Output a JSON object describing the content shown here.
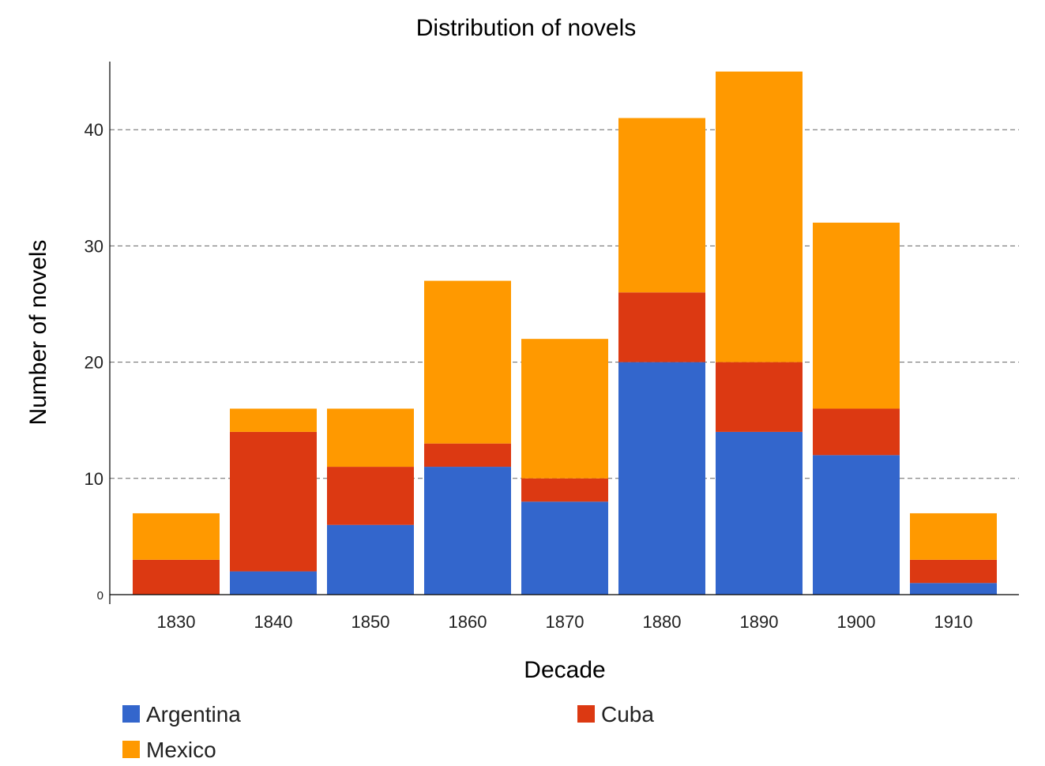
{
  "chart_data": {
    "type": "bar",
    "stacked": true,
    "title": "Distribution of novels",
    "xlabel": "Decade",
    "ylabel": "Number of novels",
    "ylim": [
      0,
      46
    ],
    "yticks": [
      0,
      10,
      20,
      30,
      40
    ],
    "grid": true,
    "legend_position": "bottom",
    "categories": [
      "1830",
      "1840",
      "1850",
      "1860",
      "1870",
      "1880",
      "1890",
      "1900",
      "1910"
    ],
    "series": [
      {
        "name": "Argentina",
        "color": "#3366cc",
        "values": [
          0,
          2,
          6,
          11,
          8,
          20,
          14,
          12,
          1
        ]
      },
      {
        "name": "Cuba",
        "color": "#dc3912",
        "values": [
          3,
          12,
          5,
          2,
          2,
          6,
          6,
          4,
          2
        ]
      },
      {
        "name": "Mexico",
        "color": "#ff9900",
        "values": [
          4,
          2,
          5,
          14,
          12,
          15,
          25,
          16,
          4
        ]
      }
    ]
  }
}
